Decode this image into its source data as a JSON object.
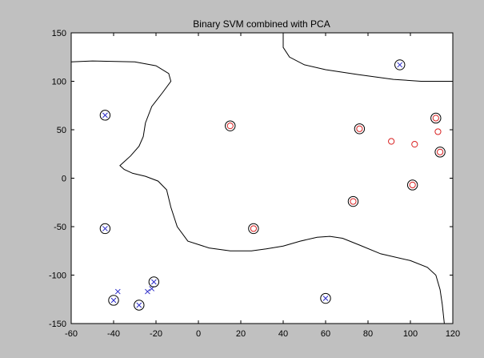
{
  "chart_data": {
    "type": "scatter",
    "title": "Binary SVM combined with PCA",
    "xlabel": "",
    "ylabel": "",
    "xlim": [
      -60,
      120
    ],
    "ylim": [
      -150,
      150
    ],
    "xticks": [
      -60,
      -40,
      -20,
      0,
      20,
      40,
      60,
      80,
      100,
      120
    ],
    "yticks": [
      -150,
      -100,
      -50,
      0,
      50,
      100,
      150
    ],
    "grid": false,
    "colors": {
      "figure_bg": "#c0c0c0",
      "axes_bg": "#ffffff",
      "class_cross": "#2b2bc8",
      "class_circle": "#d82020",
      "support_vector_ring": "#000000",
      "boundary": "#000000"
    },
    "series": [
      {
        "marker": "x",
        "color": "#2b2bc8",
        "points": [
          [
            -44,
            65
          ],
          [
            -44,
            -52
          ],
          [
            -38,
            -117
          ],
          [
            -40,
            -126
          ],
          [
            -28,
            -131
          ],
          [
            -24,
            -117
          ],
          [
            -22,
            -114
          ],
          [
            -21,
            -107
          ],
          [
            60,
            -124
          ],
          [
            95,
            117
          ]
        ]
      },
      {
        "marker": "o",
        "color": "#d82020",
        "points": [
          [
            15,
            54
          ],
          [
            26,
            -52
          ],
          [
            73,
            -24
          ],
          [
            76,
            51
          ],
          [
            91,
            38
          ],
          [
            101,
            -7
          ],
          [
            102,
            35
          ],
          [
            112,
            62
          ],
          [
            113,
            48
          ],
          [
            114,
            27
          ]
        ]
      }
    ],
    "support_vectors": [
      [
        -44,
        65
      ],
      [
        -44,
        -52
      ],
      [
        -40,
        -126
      ],
      [
        -28,
        -131
      ],
      [
        -21,
        -107
      ],
      [
        60,
        -124
      ],
      [
        95,
        117
      ],
      [
        15,
        54
      ],
      [
        26,
        -52
      ],
      [
        73,
        -24
      ],
      [
        76,
        51
      ],
      [
        101,
        -7
      ],
      [
        112,
        62
      ],
      [
        114,
        27
      ]
    ],
    "decision_boundary": [
      [
        [
          -60,
          120
        ],
        [
          -50,
          121
        ],
        [
          -30,
          120
        ],
        [
          -20,
          116
        ],
        [
          -14,
          108
        ],
        [
          -13,
          100
        ],
        [
          -17,
          88
        ],
        [
          -22,
          74
        ],
        [
          -25,
          57
        ],
        [
          -26,
          43
        ],
        [
          -28,
          33
        ],
        [
          -32,
          23
        ],
        [
          -35,
          17
        ],
        [
          -37,
          13
        ],
        [
          -35,
          9
        ],
        [
          -31,
          5
        ],
        [
          -25,
          2
        ],
        [
          -19,
          -3
        ],
        [
          -15,
          -12
        ],
        [
          -13,
          -30
        ],
        [
          -10,
          -50
        ],
        [
          -5,
          -65
        ],
        [
          5,
          -72
        ],
        [
          15,
          -75
        ],
        [
          25,
          -75
        ],
        [
          32,
          -73
        ],
        [
          40,
          -70
        ],
        [
          48,
          -65
        ],
        [
          56,
          -61
        ],
        [
          62,
          -60
        ],
        [
          68,
          -62
        ],
        [
          76,
          -69
        ],
        [
          86,
          -78
        ],
        [
          100,
          -85
        ],
        [
          108,
          -92
        ],
        [
          112,
          -100
        ],
        [
          114,
          -115
        ],
        [
          115,
          -130
        ],
        [
          116,
          -150
        ]
      ],
      [
        [
          40,
          150
        ],
        [
          40,
          135
        ],
        [
          43,
          125
        ],
        [
          50,
          117
        ],
        [
          60,
          112
        ],
        [
          75,
          107
        ],
        [
          92,
          102
        ],
        [
          105,
          100
        ],
        [
          120,
          100
        ]
      ]
    ]
  }
}
